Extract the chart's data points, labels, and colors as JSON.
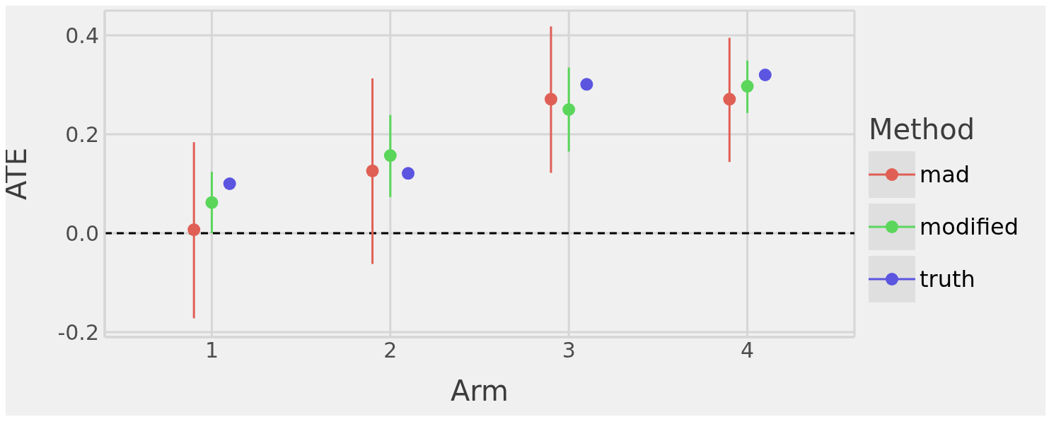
{
  "chart_data": {
    "type": "scatter",
    "xlabel": "Arm",
    "ylabel": "ATE",
    "legend_title": "Method",
    "xlim": [
      0.4,
      4.6
    ],
    "xticks": [
      1,
      2,
      3,
      4
    ],
    "ylim": [
      -0.21,
      0.45
    ],
    "yticks": [
      -0.2,
      {
        "value": 0,
        "label": "0.0"
      },
      0.2,
      0.4
    ],
    "grid": true,
    "legend": "right",
    "marker": "circle",
    "ref_lines": [
      {
        "axis": "y",
        "value": 0,
        "color": "#000000",
        "line_style": "dashed"
      }
    ],
    "series": [
      {
        "name": "mad",
        "color": "#e05f55",
        "x": [
          0.9,
          1.9,
          2.9,
          3.9
        ],
        "values": [
          0.007,
          0.126,
          0.271,
          0.271
        ],
        "errors": [
          [
            -0.172,
            0.184
          ],
          [
            -0.062,
            0.313
          ],
          [
            0.122,
            0.418
          ],
          [
            0.144,
            0.395
          ]
        ]
      },
      {
        "name": "modified",
        "color": "#5bd65b",
        "x": [
          1,
          2,
          3,
          4
        ],
        "values": [
          0.062,
          0.157,
          0.25,
          0.297
        ],
        "errors": [
          [
            0.0,
            0.124
          ],
          [
            0.073,
            0.239
          ],
          [
            0.165,
            0.335
          ],
          [
            0.243,
            0.349
          ]
        ]
      },
      {
        "name": "truth",
        "color": "#5b55e0",
        "x": [
          1.1,
          2.1,
          3.1,
          4.1
        ],
        "values": [
          0.1,
          0.121,
          0.301,
          0.32
        ]
      }
    ]
  }
}
